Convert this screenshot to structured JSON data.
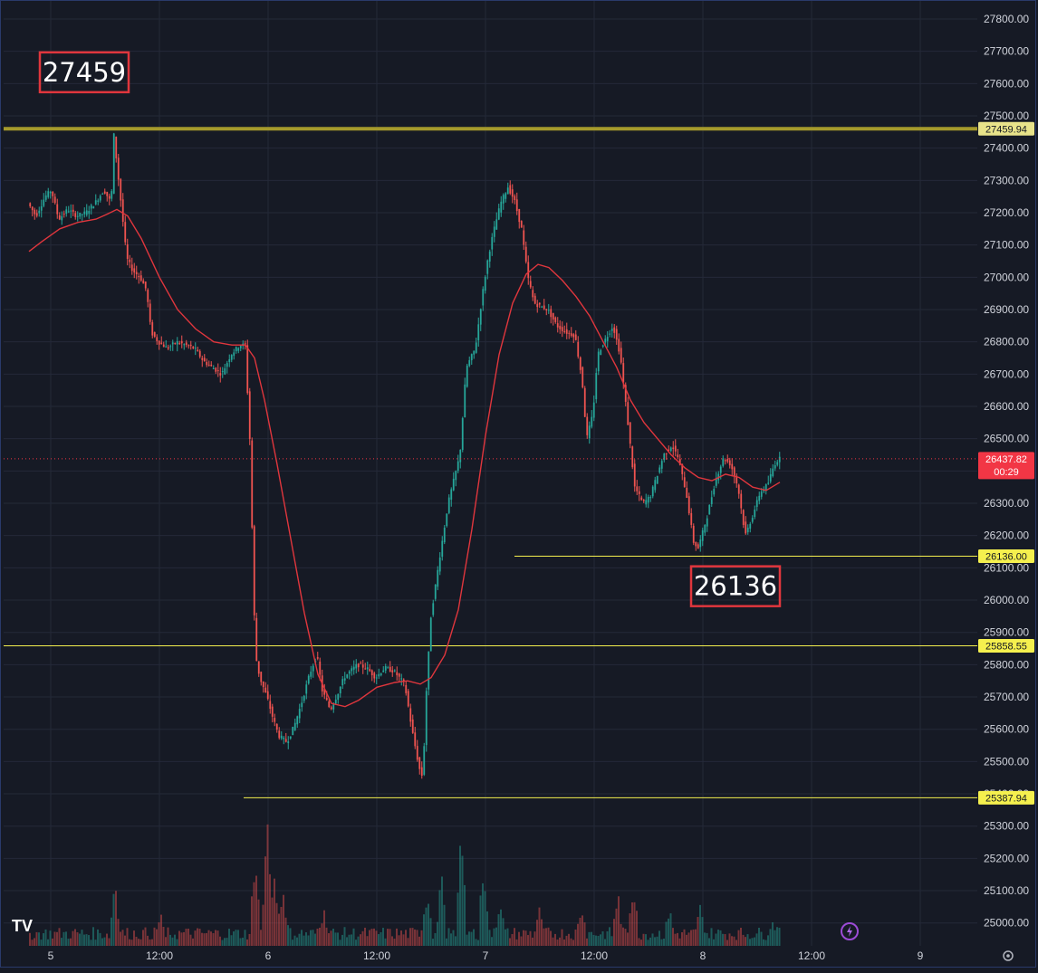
{
  "chart_data": {
    "type": "candlestick",
    "price_axis": {
      "ticks": [
        "27800.00",
        "27700.00",
        "27600.00",
        "27500.00",
        "27400.00",
        "27300.00",
        "27200.00",
        "27100.00",
        "27000.00",
        "26900.00",
        "26800.00",
        "26700.00",
        "26600.00",
        "26500.00",
        "26400.00",
        "26300.00",
        "26200.00",
        "26100.00",
        "26000.00",
        "25900.00",
        "25800.00",
        "25700.00",
        "25600.00",
        "25500.00",
        "25400.00",
        "25300.00",
        "25200.00",
        "25100.00",
        "25000.00"
      ],
      "ylim": [
        24930,
        27845
      ]
    },
    "time_axis": {
      "ticks": [
        {
          "t": 0,
          "label": "5"
        },
        {
          "t": 12,
          "label": "12:00"
        },
        {
          "t": 24,
          "label": "6"
        },
        {
          "t": 36,
          "label": "12:00"
        },
        {
          "t": 48,
          "label": "7"
        },
        {
          "t": 60,
          "label": "12:00"
        },
        {
          "t": 72,
          "label": "8"
        },
        {
          "t": 84,
          "label": "12:00"
        },
        {
          "t": 96,
          "label": "9"
        }
      ],
      "xlim": [
        -2.4,
        100.6
      ]
    },
    "price_path": [
      [
        -2.4,
        27230
      ],
      [
        -1.5,
        27190
      ],
      [
        -0.5,
        27250
      ],
      [
        0.2,
        27270
      ],
      [
        1,
        27180
      ],
      [
        2,
        27210
      ],
      [
        3,
        27190
      ],
      [
        4,
        27200
      ],
      [
        5,
        27230
      ],
      [
        6,
        27270
      ],
      [
        6.8,
        27230
      ],
      [
        7.1,
        27440
      ],
      [
        7.5,
        27330
      ],
      [
        8,
        27200
      ],
      [
        8.5,
        27060
      ],
      [
        9.2,
        27020
      ],
      [
        10,
        27000
      ],
      [
        10.7,
        26960
      ],
      [
        11.2,
        26830
      ],
      [
        12,
        26800
      ],
      [
        13,
        26780
      ],
      [
        14,
        26800
      ],
      [
        15,
        26790
      ],
      [
        16,
        26780
      ],
      [
        17,
        26740
      ],
      [
        18,
        26720
      ],
      [
        19,
        26700
      ],
      [
        20,
        26760
      ],
      [
        21,
        26790
      ],
      [
        21.6,
        26790
      ],
      [
        22.1,
        26500
      ],
      [
        22.6,
        25950
      ],
      [
        22.8,
        25820
      ],
      [
        23.2,
        25760
      ],
      [
        24,
        25700
      ],
      [
        24.6,
        25640
      ],
      [
        25.3,
        25580
      ],
      [
        26.2,
        25560
      ],
      [
        27,
        25610
      ],
      [
        27.8,
        25680
      ],
      [
        28.7,
        25770
      ],
      [
        29.5,
        25830
      ],
      [
        30.1,
        25720
      ],
      [
        31,
        25660
      ],
      [
        31.8,
        25710
      ],
      [
        32.5,
        25760
      ],
      [
        33.2,
        25780
      ],
      [
        34,
        25800
      ],
      [
        35,
        25790
      ],
      [
        36,
        25760
      ],
      [
        37,
        25790
      ],
      [
        38,
        25780
      ],
      [
        39.2,
        25740
      ],
      [
        40,
        25600
      ],
      [
        40.8,
        25480
      ],
      [
        41.2,
        25450
      ],
      [
        41.6,
        25720
      ],
      [
        42.1,
        25950
      ],
      [
        43,
        26120
      ],
      [
        44,
        26300
      ],
      [
        45.3,
        26450
      ],
      [
        46,
        26720
      ],
      [
        47,
        26780
      ],
      [
        47.8,
        26950
      ],
      [
        48.4,
        27060
      ],
      [
        49,
        27140
      ],
      [
        49.8,
        27230
      ],
      [
        50.6,
        27280
      ],
      [
        51.3,
        27240
      ],
      [
        52.1,
        27150
      ],
      [
        52.8,
        27000
      ],
      [
        53.5,
        26920
      ],
      [
        54.2,
        26910
      ],
      [
        55,
        26900
      ],
      [
        56,
        26850
      ],
      [
        57,
        26830
      ],
      [
        58,
        26820
      ],
      [
        58.8,
        26680
      ],
      [
        59.3,
        26500
      ],
      [
        60,
        26580
      ],
      [
        60.5,
        26760
      ],
      [
        61.2,
        26800
      ],
      [
        62.2,
        26850
      ],
      [
        63,
        26760
      ],
      [
        63.8,
        26560
      ],
      [
        64.6,
        26350
      ],
      [
        65.5,
        26300
      ],
      [
        66.3,
        26320
      ],
      [
        67,
        26380
      ],
      [
        67.8,
        26450
      ],
      [
        68.7,
        26480
      ],
      [
        69.4,
        26440
      ],
      [
        70.3,
        26330
      ],
      [
        71.1,
        26180
      ],
      [
        71.6,
        26160
      ],
      [
        72.6,
        26260
      ],
      [
        73.5,
        26370
      ],
      [
        74.4,
        26440
      ],
      [
        75.2,
        26420
      ],
      [
        76,
        26350
      ],
      [
        76.8,
        26200
      ],
      [
        77.6,
        26260
      ],
      [
        78.4,
        26330
      ],
      [
        79.3,
        26360
      ],
      [
        80,
        26420
      ],
      [
        80.5,
        26438
      ]
    ],
    "moving_average": [
      [
        -2.4,
        27080
      ],
      [
        -1,
        27110
      ],
      [
        1,
        27150
      ],
      [
        3,
        27170
      ],
      [
        5,
        27180
      ],
      [
        6.2,
        27195
      ],
      [
        7.3,
        27210
      ],
      [
        8.5,
        27190
      ],
      [
        10,
        27120
      ],
      [
        12,
        27000
      ],
      [
        14,
        26900
      ],
      [
        16,
        26840
      ],
      [
        18,
        26800
      ],
      [
        20,
        26790
      ],
      [
        21.5,
        26790
      ],
      [
        22.5,
        26750
      ],
      [
        23.6,
        26620
      ],
      [
        25,
        26420
      ],
      [
        26.5,
        26190
      ],
      [
        28,
        25960
      ],
      [
        29.5,
        25770
      ],
      [
        31,
        25680
      ],
      [
        32.5,
        25670
      ],
      [
        34,
        25690
      ],
      [
        36,
        25730
      ],
      [
        38,
        25745
      ],
      [
        39.4,
        25750
      ],
      [
        40.8,
        25740
      ],
      [
        42,
        25760
      ],
      [
        43.5,
        25830
      ],
      [
        45,
        25970
      ],
      [
        46.5,
        26220
      ],
      [
        48,
        26510
      ],
      [
        49.5,
        26760
      ],
      [
        51,
        26920
      ],
      [
        52.5,
        27010
      ],
      [
        53.8,
        27040
      ],
      [
        55,
        27030
      ],
      [
        56.5,
        26990
      ],
      [
        58,
        26940
      ],
      [
        59.5,
        26880
      ],
      [
        61,
        26800
      ],
      [
        62.5,
        26720
      ],
      [
        64,
        26620
      ],
      [
        65.5,
        26550
      ],
      [
        67,
        26500
      ],
      [
        68.5,
        26450
      ],
      [
        70,
        26410
      ],
      [
        71.5,
        26380
      ],
      [
        73,
        26370
      ],
      [
        74.5,
        26390
      ],
      [
        76,
        26380
      ],
      [
        77.5,
        26350
      ],
      [
        79,
        26340
      ],
      [
        80.5,
        26365
      ]
    ],
    "volume_spikes": [
      [
        7,
        0.55
      ],
      [
        12,
        0.25
      ],
      [
        22.5,
        0.75
      ],
      [
        23.8,
        1.0
      ],
      [
        24.6,
        0.7
      ],
      [
        25.6,
        0.45
      ],
      [
        30,
        0.3
      ],
      [
        41.4,
        0.45
      ],
      [
        43,
        0.55
      ],
      [
        45.2,
        0.9
      ],
      [
        47.7,
        0.7
      ],
      [
        49.5,
        0.4
      ],
      [
        53.8,
        0.3
      ],
      [
        58.5,
        0.35
      ],
      [
        62.5,
        0.42
      ],
      [
        64.2,
        0.55
      ],
      [
        68.2,
        0.3
      ],
      [
        71.6,
        0.32
      ],
      [
        79.5,
        0.22
      ]
    ],
    "horizontal_levels": [
      {
        "price": 27459.94,
        "label": "27459.94",
        "color": "#a59a2c",
        "thick": true
      },
      {
        "price": 26136.0,
        "label": "26136.00",
        "color": "#f5f04e",
        "thick": false,
        "start_t": 51.2
      },
      {
        "price": 25858.55,
        "label": "25858.55",
        "color": "#f5f04e",
        "thick": false
      },
      {
        "price": 25387.94,
        "label": "25387.94",
        "color": "#f5f04e",
        "thick": false,
        "start_t": 21.3
      }
    ],
    "last_price": {
      "price": 26437.82,
      "label": "26437.82",
      "countdown": "00:29",
      "color": "#f23645"
    },
    "annotations": [
      {
        "text": "27459",
        "t": 3.7,
        "price": 27635
      },
      {
        "text": "26136",
        "t": 75.6,
        "price": 26043
      }
    ],
    "colors": {
      "background": "#161a25",
      "grid": "#242938",
      "up": "#26a69a",
      "down": "#ef5350",
      "ma": "#e0363d",
      "callout_border": "#e0363d",
      "text": "#d1d4dc"
    },
    "grid": true
  },
  "ui": {
    "logo_text": "TV",
    "lightning_icon": "lightning-icon",
    "settings_icon": "gear-icon"
  }
}
